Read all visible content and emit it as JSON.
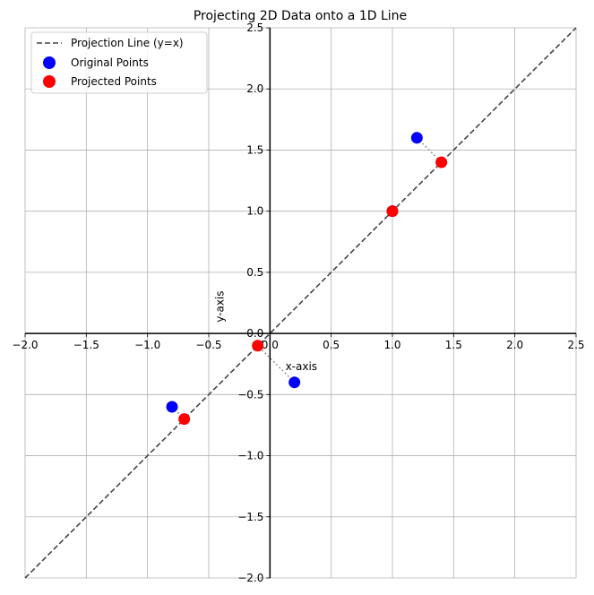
{
  "chart_data": {
    "type": "scatter",
    "title": "Projecting 2D Data onto a 1D Line",
    "xlabel": "x-axis",
    "ylabel": "y-axis",
    "xlim": [
      -2.0,
      2.5
    ],
    "ylim": [
      -2.0,
      2.5
    ],
    "xticks": [
      -2.0,
      -1.5,
      -1.0,
      -0.5,
      0.0,
      0.5,
      1.0,
      1.5,
      2.0,
      2.5
    ],
    "yticks": [
      -2.0,
      -1.5,
      -1.0,
      -0.5,
      0.0,
      0.5,
      1.0,
      1.5,
      2.0,
      2.5
    ],
    "xtick_labels": [
      "−2.0",
      "−1.5",
      "−1.0",
      "−0.5",
      "0.0",
      "0.5",
      "1.0",
      "1.5",
      "2.0",
      "2.5"
    ],
    "ytick_labels": [
      "−2.0",
      "−1.5",
      "−1.0",
      "−0.5",
      "0.0",
      "0.5",
      "1.0",
      "1.5",
      "2.0",
      "2.5"
    ],
    "grid": true,
    "spines": "centered at origin",
    "legend_position": "upper-left",
    "projection_line": {
      "name": "Projection Line (y=x)",
      "x": [
        -2.0,
        2.5
      ],
      "y": [
        -2.0,
        2.5
      ],
      "style": "dashed",
      "color": "#444444"
    },
    "series": [
      {
        "name": "Original Points",
        "color": "#0000ff",
        "points": [
          [
            1.2,
            1.6
          ],
          [
            1.0,
            1.0
          ],
          [
            0.2,
            -0.4
          ],
          [
            -0.8,
            -0.6
          ]
        ]
      },
      {
        "name": "Projected Points",
        "color": "#ff0000",
        "points": [
          [
            1.4,
            1.4
          ],
          [
            1.0,
            1.0
          ],
          [
            -0.1,
            -0.1
          ],
          [
            -0.7,
            -0.7
          ]
        ]
      }
    ],
    "connector_color": "#808080"
  }
}
